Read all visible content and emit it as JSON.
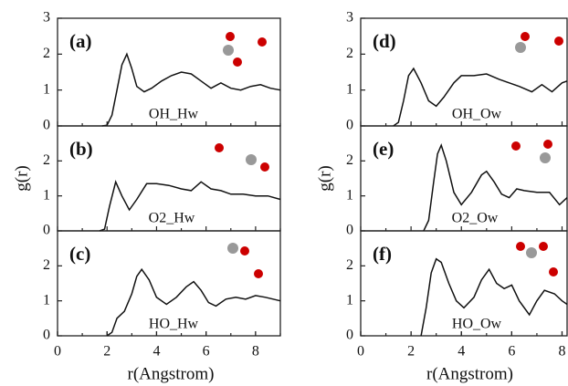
{
  "chart_data": [
    {
      "type": "line",
      "panel_label": "(a)",
      "xlim": [
        0,
        9
      ],
      "ylim": [
        0,
        3
      ],
      "yticks": [
        0,
        1,
        2,
        3
      ],
      "series": [
        {
          "name": "OH_Hw",
          "color": "#111111",
          "x": [
            1.8,
            2.0,
            2.2,
            2.4,
            2.6,
            2.8,
            3.0,
            3.2,
            3.5,
            3.8,
            4.2,
            4.6,
            5.0,
            5.4,
            5.8,
            6.2,
            6.6,
            7.0,
            7.4,
            7.8,
            8.2,
            8.6,
            9.0
          ],
          "values": [
            0,
            0.02,
            0.3,
            1.0,
            1.7,
            2.0,
            1.6,
            1.1,
            0.95,
            1.05,
            1.25,
            1.4,
            1.5,
            1.45,
            1.25,
            1.05,
            1.2,
            1.05,
            1.0,
            1.1,
            1.15,
            1.05,
            1.0
          ]
        }
      ]
    },
    {
      "type": "line",
      "panel_label": "(b)",
      "y_label": "g(r)",
      "xlim": [
        0,
        9
      ],
      "ylim": [
        0,
        3
      ],
      "yticks": [
        0,
        1,
        2
      ],
      "series": [
        {
          "name": "O2_Hw",
          "color": "#111111",
          "x": [
            1.7,
            1.9,
            2.1,
            2.35,
            2.6,
            2.9,
            3.2,
            3.6,
            4.0,
            4.5,
            5.0,
            5.4,
            5.8,
            6.2,
            6.6,
            7.0,
            7.5,
            8.0,
            8.5,
            9.0
          ],
          "values": [
            0,
            0.05,
            0.7,
            1.4,
            1.0,
            0.6,
            0.9,
            1.35,
            1.35,
            1.3,
            1.2,
            1.15,
            1.4,
            1.2,
            1.15,
            1.05,
            1.05,
            1.0,
            1.0,
            0.9
          ]
        }
      ]
    },
    {
      "type": "line",
      "panel_label": "(c)",
      "x_label": "r(Angstrom)",
      "xlim": [
        0,
        9
      ],
      "xticks": [
        0,
        2,
        4,
        6,
        8
      ],
      "ylim": [
        0,
        3
      ],
      "yticks": [
        0,
        1,
        2
      ],
      "series": [
        {
          "name": "HO_Hw",
          "color": "#111111",
          "x": [
            2.0,
            2.2,
            2.4,
            2.7,
            3.0,
            3.2,
            3.4,
            3.7,
            4.0,
            4.4,
            4.8,
            5.2,
            5.5,
            5.8,
            6.1,
            6.4,
            6.8,
            7.2,
            7.6,
            8.0,
            8.4,
            9.0
          ],
          "values": [
            0,
            0.1,
            0.5,
            0.7,
            1.2,
            1.7,
            1.9,
            1.6,
            1.1,
            0.9,
            1.1,
            1.4,
            1.55,
            1.3,
            0.95,
            0.85,
            1.05,
            1.1,
            1.05,
            1.15,
            1.1,
            1.0
          ]
        }
      ]
    },
    {
      "type": "line",
      "panel_label": "(d)",
      "xlim": [
        0,
        8.2
      ],
      "ylim": [
        0,
        3
      ],
      "yticks": [
        0,
        1,
        2,
        3
      ],
      "series": [
        {
          "name": "OH_Ow",
          "color": "#111111",
          "x": [
            1.3,
            1.5,
            1.7,
            1.9,
            2.1,
            2.4,
            2.7,
            3.0,
            3.3,
            3.7,
            4.0,
            4.5,
            5.0,
            5.5,
            5.9,
            6.3,
            6.8,
            7.2,
            7.6,
            8.0,
            8.2
          ],
          "values": [
            0,
            0.1,
            0.7,
            1.4,
            1.6,
            1.2,
            0.7,
            0.55,
            0.8,
            1.2,
            1.4,
            1.4,
            1.45,
            1.3,
            1.2,
            1.1,
            0.95,
            1.15,
            0.95,
            1.2,
            1.25
          ]
        }
      ]
    },
    {
      "type": "line",
      "panel_label": "(e)",
      "y_label": "g(r)",
      "xlim": [
        0,
        8.2
      ],
      "ylim": [
        0,
        3
      ],
      "yticks": [
        0,
        1,
        2
      ],
      "series": [
        {
          "name": "O2_Ow",
          "color": "#111111",
          "x": [
            2.5,
            2.7,
            2.9,
            3.05,
            3.2,
            3.4,
            3.7,
            4.0,
            4.4,
            4.8,
            5.0,
            5.3,
            5.6,
            5.9,
            6.2,
            6.5,
            7.0,
            7.5,
            7.9,
            8.2
          ],
          "values": [
            0,
            0.3,
            1.4,
            2.2,
            2.45,
            2.0,
            1.1,
            0.75,
            1.1,
            1.6,
            1.7,
            1.4,
            1.05,
            0.95,
            1.2,
            1.15,
            1.1,
            1.1,
            0.75,
            0.95
          ]
        }
      ]
    },
    {
      "type": "line",
      "panel_label": "(f)",
      "x_label": "r(Angstrom)",
      "xlim": [
        0,
        8.2
      ],
      "xticks": [
        0,
        2,
        4,
        6,
        8
      ],
      "ylim": [
        0,
        3
      ],
      "yticks": [
        0,
        1,
        2
      ],
      "series": [
        {
          "name": "HO_Ow",
          "color": "#111111",
          "x": [
            2.4,
            2.6,
            2.8,
            3.0,
            3.2,
            3.5,
            3.8,
            4.1,
            4.5,
            4.8,
            5.1,
            5.4,
            5.7,
            6.0,
            6.3,
            6.7,
            7.0,
            7.3,
            7.7,
            8.0,
            8.2
          ],
          "values": [
            0,
            0.8,
            1.8,
            2.2,
            2.1,
            1.5,
            1.0,
            0.8,
            1.1,
            1.6,
            1.9,
            1.5,
            1.35,
            1.45,
            1.0,
            0.6,
            1.0,
            1.3,
            1.2,
            1.0,
            0.9
          ]
        }
      ]
    }
  ]
}
